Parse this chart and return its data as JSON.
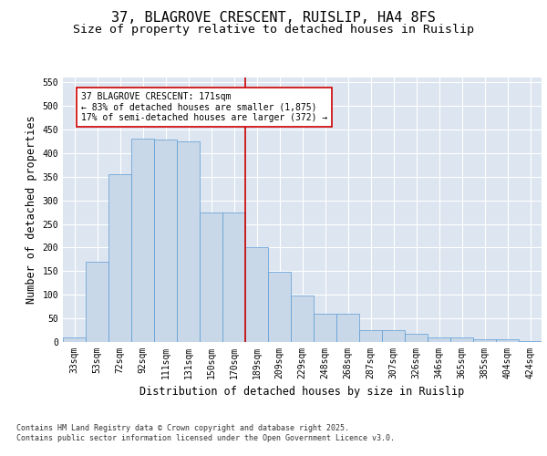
{
  "title": "37, BLAGROVE CRESCENT, RUISLIP, HA4 8FS",
  "subtitle": "Size of property relative to detached houses in Ruislip",
  "xlabel": "Distribution of detached houses by size in Ruislip",
  "ylabel": "Number of detached properties",
  "categories": [
    "33sqm",
    "53sqm",
    "72sqm",
    "92sqm",
    "111sqm",
    "131sqm",
    "150sqm",
    "170sqm",
    "189sqm",
    "209sqm",
    "229sqm",
    "248sqm",
    "268sqm",
    "287sqm",
    "307sqm",
    "326sqm",
    "346sqm",
    "365sqm",
    "385sqm",
    "404sqm",
    "424sqm"
  ],
  "values": [
    10,
    170,
    355,
    430,
    428,
    425,
    275,
    275,
    200,
    148,
    98,
    60,
    60,
    25,
    25,
    18,
    10,
    10,
    6,
    5,
    2
  ],
  "bar_color": "#c8d8e8",
  "bar_edge_color": "#5b9bd5",
  "background_color": "#dde6f0",
  "grid_color": "#ffffff",
  "vline_color": "#cc0000",
  "annotation_text": "37 BLAGROVE CRESCENT: 171sqm\n← 83% of detached houses are smaller (1,875)\n17% of semi-detached houses are larger (372) →",
  "annotation_box_color": "#cc0000",
  "ylim": [
    0,
    560
  ],
  "yticks": [
    0,
    50,
    100,
    150,
    200,
    250,
    300,
    350,
    400,
    450,
    500,
    550
  ],
  "footer1": "Contains HM Land Registry data © Crown copyright and database right 2025.",
  "footer2": "Contains public sector information licensed under the Open Government Licence v3.0.",
  "title_fontsize": 11,
  "subtitle_fontsize": 9.5,
  "axis_label_fontsize": 8.5,
  "tick_fontsize": 7,
  "annotation_fontsize": 7,
  "footer_fontsize": 6
}
